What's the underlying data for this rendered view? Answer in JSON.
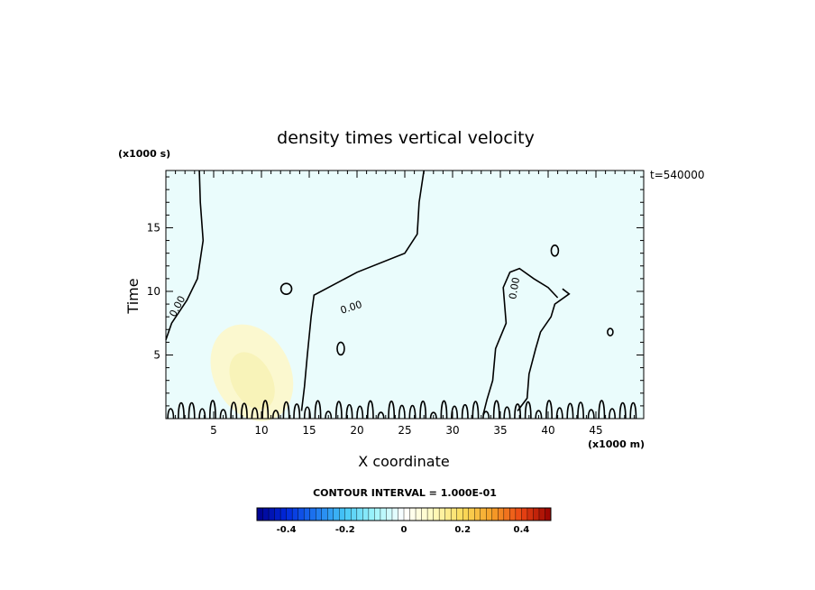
{
  "chart_data": {
    "type": "heatmap",
    "title": "density times vertical velocity",
    "xlabel": "X coordinate",
    "ylabel": "Time",
    "x_unit": "(x1000 m)",
    "y_unit": "(x1000 s)",
    "time_stamp": "t=540000",
    "xlim": [
      0,
      50
    ],
    "ylim": [
      0,
      19.5
    ],
    "x_ticks": [
      5,
      10,
      15,
      20,
      25,
      30,
      35,
      40,
      45
    ],
    "y_ticks": [
      5,
      10,
      15
    ],
    "contour_interval_text": "CONTOUR INTERVAL = 1.000E-01",
    "contour_labels": [
      "0.00",
      "0.00",
      "0.00"
    ],
    "colorbar": {
      "range": [
        -0.5,
        0.5
      ],
      "tick_values": [
        -0.4,
        -0.2,
        0,
        0.2,
        0.4
      ],
      "tick_labels": [
        "-0.4",
        "-0.2",
        "0",
        "0.2",
        "0.4"
      ]
    },
    "background_value_approx": -0.02,
    "positive_region": {
      "x_range": [
        5,
        13
      ],
      "time_range": [
        0,
        8
      ],
      "peak_value": 0.1
    },
    "grid": false
  },
  "colors": {
    "background_field": "#eafcfc",
    "positive_field": "#fbf8cf",
    "positive_core": "#f8f3b9",
    "contour": "#000000"
  }
}
